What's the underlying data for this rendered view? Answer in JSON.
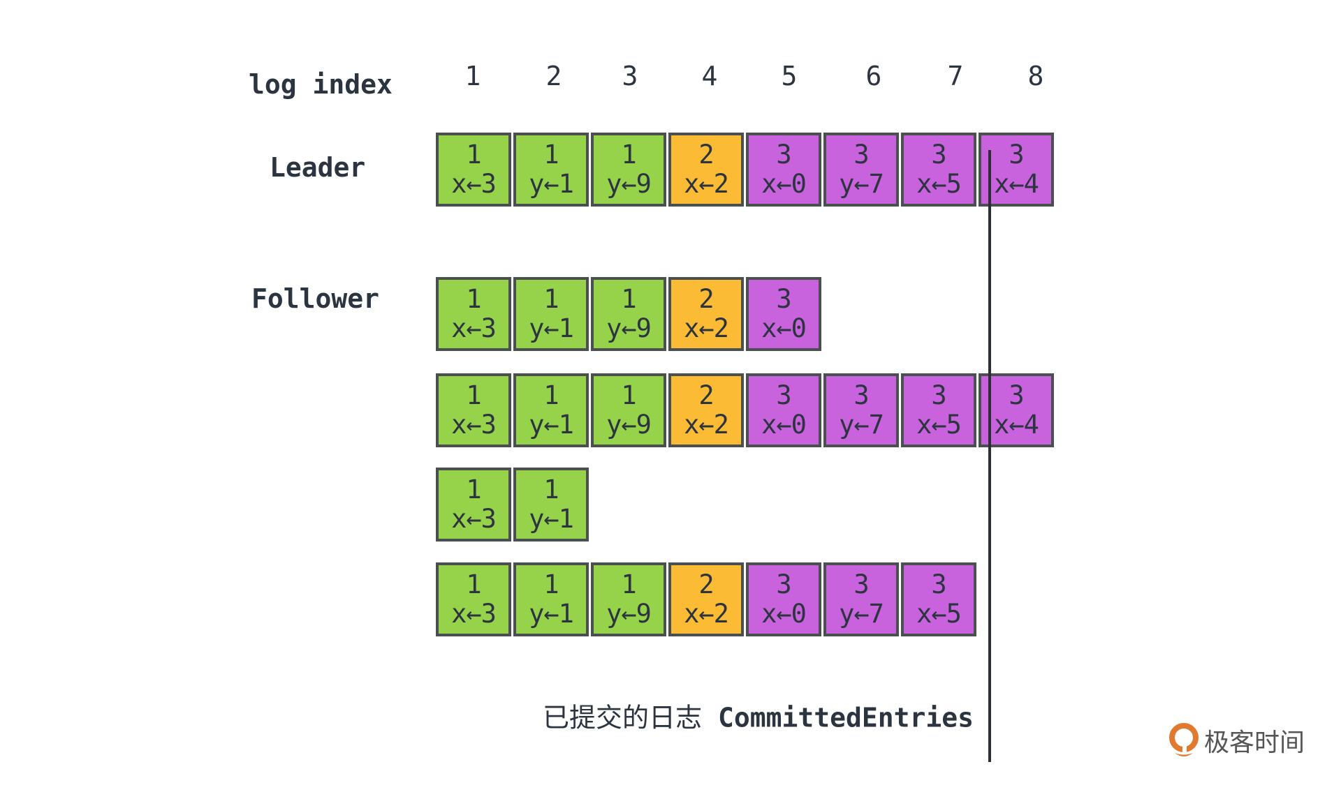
{
  "labels": {
    "log_index": "log index",
    "leader": "Leader",
    "follower": "Follower"
  },
  "indices": [
    "1",
    "2",
    "3",
    "4",
    "5",
    "6",
    "7",
    "8"
  ],
  "term_colors": {
    "1": "#96d34a",
    "2": "#fbbb34",
    "3": "#c962dd"
  },
  "rows": [
    {
      "role": "leader",
      "entries": [
        [
          "1",
          "x←3"
        ],
        [
          "1",
          "y←1"
        ],
        [
          "1",
          "y←9"
        ],
        [
          "2",
          "x←2"
        ],
        [
          "3",
          "x←0"
        ],
        [
          "3",
          "y←7"
        ],
        [
          "3",
          "x←5"
        ],
        [
          "3",
          "x←4"
        ]
      ]
    },
    {
      "role": "follower",
      "entries": [
        [
          "1",
          "x←3"
        ],
        [
          "1",
          "y←1"
        ],
        [
          "1",
          "y←9"
        ],
        [
          "2",
          "x←2"
        ],
        [
          "3",
          "x←0"
        ]
      ]
    },
    {
      "role": "follower",
      "entries": [
        [
          "1",
          "x←3"
        ],
        [
          "1",
          "y←1"
        ],
        [
          "1",
          "y←9"
        ],
        [
          "2",
          "x←2"
        ],
        [
          "3",
          "x←0"
        ],
        [
          "3",
          "y←7"
        ],
        [
          "3",
          "x←5"
        ],
        [
          "3",
          "x←4"
        ]
      ]
    },
    {
      "role": "follower",
      "entries": [
        [
          "1",
          "x←3"
        ],
        [
          "1",
          "y←1"
        ]
      ]
    },
    {
      "role": "follower",
      "entries": [
        [
          "1",
          "x←3"
        ],
        [
          "1",
          "y←1"
        ],
        [
          "1",
          "y←9"
        ],
        [
          "2",
          "x←2"
        ],
        [
          "3",
          "x←0"
        ],
        [
          "3",
          "y←7"
        ],
        [
          "3",
          "x←5"
        ]
      ]
    }
  ],
  "caption": {
    "cn": "已提交的日志",
    "en": "CommittedEntries"
  },
  "logo": {
    "text": "极客时间",
    "accent": "#e07a2e"
  }
}
